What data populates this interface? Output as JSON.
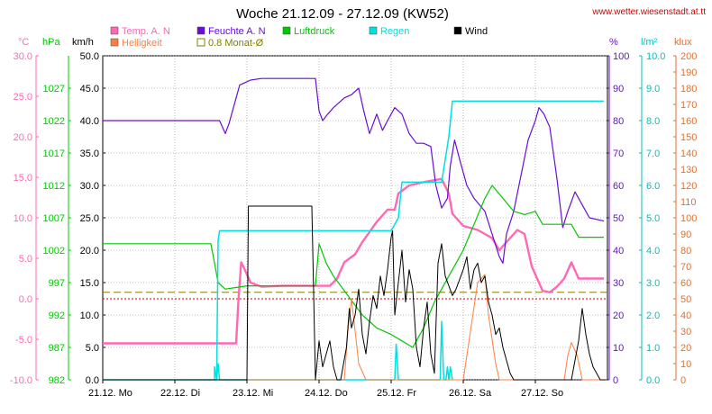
{
  "header": {
    "title": "Woche 21.12.09 - 27.12.09 (KW52)",
    "site": "www.wetter.wiesenstadt.at.tt"
  },
  "colors": {
    "temp": "#ff69b4",
    "helligkeit": "#ff7f3f",
    "feuchte": "#6a0dd8",
    "luftdruck": "#00c800",
    "regen": "#00e0e0",
    "wind": "#000000",
    "grid": "#888888",
    "monat_line": "#808000",
    "zero_line": "#cc0000",
    "site": "#cc0000"
  },
  "legend": [
    {
      "label": "Temp. A. N",
      "color": "#ff69b4",
      "type": "filled"
    },
    {
      "label": "Feuchte A. N",
      "color": "#6a0dd8",
      "type": "filled"
    },
    {
      "label": "Luftdruck",
      "color": "#00c800",
      "type": "filled"
    },
    {
      "label": "Regen",
      "color": "#00e0e0",
      "type": "filled"
    },
    {
      "label": "Wind",
      "color": "#000000",
      "type": "filled"
    },
    {
      "label": "Helligkeit",
      "color": "#ff7f3f",
      "type": "filled"
    },
    {
      "label": "0.8 Monat-Ø",
      "color": "#808000",
      "type": "outline"
    }
  ],
  "chart_data": {
    "type": "line",
    "x_labels": [
      "21.12. Mo",
      "22.12. Di",
      "23.12. Mi",
      "24.12. Do",
      "25.12. Fr",
      "26.12. Sa",
      "27.12. So"
    ],
    "axes": {
      "temp": {
        "unit": "°C",
        "ticks": [
          "30.0",
          "25.0",
          "20.0",
          "15.0",
          "10.0",
          "5.0",
          "0.0",
          "-5.0",
          "-10.0"
        ],
        "range": [
          -10,
          30
        ]
      },
      "pressure": {
        "unit": "hPa",
        "ticks": [
          "1027",
          "1022",
          "1017",
          "1012",
          "1007",
          "1002",
          "997",
          "992",
          "987",
          "982"
        ],
        "range": [
          982,
          1032
        ]
      },
      "wind": {
        "unit": "km/h",
        "ticks": [
          "50.0",
          "45.0",
          "40.0",
          "35.0",
          "30.0",
          "25.0",
          "20.0",
          "15.0",
          "10.0",
          "5.0",
          "0.0"
        ],
        "range": [
          0,
          50
        ]
      },
      "humidity": {
        "unit": "%",
        "ticks": [
          "100",
          "90",
          "80",
          "70",
          "60",
          "50",
          "40",
          "30",
          "20",
          "10",
          "0"
        ],
        "range": [
          0,
          100
        ]
      },
      "rain": {
        "unit": "l/m²",
        "ticks": [
          "10.0",
          "9.0",
          "8.0",
          "7.0",
          "6.0",
          "5.0",
          "4.0",
          "3.0",
          "2.0",
          "1.0",
          "0.0"
        ],
        "range": [
          0,
          10
        ]
      },
      "lux": {
        "unit": "klux",
        "ticks": [
          "200",
          "190",
          "180",
          "170",
          "160",
          "150",
          "140",
          "130",
          "120",
          "110",
          "100",
          "90",
          "80",
          "70",
          "60",
          "50",
          "40",
          "30",
          "20",
          "10",
          "0"
        ],
        "range": [
          0,
          200
        ]
      }
    },
    "monat_avg_temp": 0.8,
    "series": [
      {
        "name": "Temp. A. N",
        "axis": "temp",
        "color": "#ff69b4",
        "width": 2.4,
        "points": [
          [
            0,
            -5.5
          ],
          [
            1.85,
            -5.5
          ],
          [
            1.88,
            -0.5
          ],
          [
            1.92,
            4.5
          ],
          [
            1.96,
            3.8
          ],
          [
            2.05,
            2.0
          ],
          [
            2.2,
            1.5
          ],
          [
            2.5,
            1.6
          ],
          [
            2.8,
            1.6
          ],
          [
            3.0,
            1.6
          ],
          [
            3.15,
            1.6
          ],
          [
            3.25,
            2.5
          ],
          [
            3.35,
            4.5
          ],
          [
            3.5,
            5.5
          ],
          [
            3.6,
            7.0
          ],
          [
            3.8,
            9.5
          ],
          [
            3.95,
            11.0
          ],
          [
            4.05,
            11.0
          ],
          [
            4.1,
            13.0
          ],
          [
            4.25,
            14.0
          ],
          [
            4.5,
            14.5
          ],
          [
            4.7,
            14.8
          ],
          [
            4.8,
            13.0
          ],
          [
            4.85,
            10.5
          ],
          [
            5.0,
            9.0
          ],
          [
            5.2,
            8.5
          ],
          [
            5.4,
            7.5
          ],
          [
            5.5,
            6.0
          ],
          [
            5.6,
            7.0
          ],
          [
            5.75,
            8.5
          ],
          [
            5.85,
            8.0
          ],
          [
            5.95,
            4.0
          ],
          [
            6.1,
            1.0
          ],
          [
            6.2,
            0.8
          ],
          [
            6.3,
            1.5
          ],
          [
            6.4,
            2.5
          ],
          [
            6.5,
            4.5
          ],
          [
            6.6,
            2.5
          ],
          [
            6.75,
            2.5
          ],
          [
            6.95,
            2.5
          ]
        ]
      },
      {
        "name": "Feuchte A. N",
        "axis": "humidity",
        "color": "#6a0dd8",
        "width": 1.2,
        "points": [
          [
            0,
            80
          ],
          [
            1.62,
            80
          ],
          [
            1.7,
            76
          ],
          [
            1.75,
            79
          ],
          [
            1.85,
            87
          ],
          [
            1.9,
            91
          ],
          [
            2.0,
            92
          ],
          [
            2.05,
            92.5
          ],
          [
            2.2,
            93
          ],
          [
            2.5,
            93
          ],
          [
            2.8,
            93
          ],
          [
            2.95,
            93
          ],
          [
            3.0,
            83
          ],
          [
            3.05,
            80
          ],
          [
            3.12,
            82
          ],
          [
            3.2,
            84
          ],
          [
            3.35,
            87
          ],
          [
            3.45,
            88
          ],
          [
            3.55,
            90
          ],
          [
            3.62,
            83
          ],
          [
            3.7,
            76
          ],
          [
            3.8,
            82
          ],
          [
            3.88,
            77
          ],
          [
            3.95,
            80
          ],
          [
            4.05,
            84
          ],
          [
            4.15,
            82
          ],
          [
            4.25,
            76
          ],
          [
            4.35,
            73
          ],
          [
            4.45,
            73
          ],
          [
            4.55,
            72
          ],
          [
            4.62,
            60
          ],
          [
            4.7,
            53
          ],
          [
            4.78,
            56
          ],
          [
            4.82,
            66
          ],
          [
            4.88,
            74
          ],
          [
            4.95,
            68
          ],
          [
            5.05,
            60
          ],
          [
            5.15,
            56
          ],
          [
            5.3,
            52
          ],
          [
            5.4,
            45
          ],
          [
            5.5,
            38
          ],
          [
            5.55,
            36
          ],
          [
            5.6,
            45
          ],
          [
            5.7,
            52
          ],
          [
            5.8,
            63
          ],
          [
            5.9,
            74
          ],
          [
            6.0,
            80
          ],
          [
            6.05,
            84
          ],
          [
            6.12,
            82
          ],
          [
            6.2,
            78
          ],
          [
            6.3,
            62
          ],
          [
            6.38,
            47
          ],
          [
            6.45,
            52
          ],
          [
            6.55,
            58
          ],
          [
            6.65,
            54
          ],
          [
            6.75,
            50
          ],
          [
            6.95,
            49
          ]
        ]
      },
      {
        "name": "Luftdruck",
        "axis": "pressure",
        "color": "#00c800",
        "width": 1.2,
        "points": [
          [
            0,
            1003
          ],
          [
            1.5,
            1003
          ],
          [
            1.55,
            1000
          ],
          [
            1.6,
            997
          ],
          [
            1.7,
            996
          ],
          [
            2.0,
            996.5
          ],
          [
            2.5,
            996.5
          ],
          [
            2.95,
            996.5
          ],
          [
            3.0,
            1003
          ],
          [
            3.1,
            1000
          ],
          [
            3.2,
            998
          ],
          [
            3.4,
            995
          ],
          [
            3.6,
            992
          ],
          [
            3.8,
            990
          ],
          [
            4.0,
            989
          ],
          [
            4.15,
            988
          ],
          [
            4.3,
            987
          ],
          [
            4.45,
            990
          ],
          [
            4.6,
            994
          ],
          [
            4.8,
            998
          ],
          [
            5.0,
            1002
          ],
          [
            5.15,
            1006
          ],
          [
            5.3,
            1010
          ],
          [
            5.4,
            1012
          ],
          [
            5.55,
            1010
          ],
          [
            5.7,
            1008
          ],
          [
            5.85,
            1007.5
          ],
          [
            6.0,
            1008
          ],
          [
            6.1,
            1006
          ],
          [
            6.3,
            1006
          ],
          [
            6.5,
            1006
          ],
          [
            6.6,
            1004
          ],
          [
            6.95,
            1004
          ]
        ]
      },
      {
        "name": "Regen",
        "axis": "rain",
        "color": "#00e0e0",
        "width": 1.5,
        "points": [
          [
            0,
            0
          ],
          [
            1.58,
            0
          ],
          [
            1.6,
            4.3
          ],
          [
            1.62,
            4.6
          ],
          [
            2.5,
            4.6
          ],
          [
            3.0,
            4.6
          ],
          [
            3.2,
            4.6
          ],
          [
            4.0,
            4.6
          ],
          [
            4.1,
            5.0
          ],
          [
            4.15,
            6.1
          ],
          [
            4.65,
            6.1
          ],
          [
            4.7,
            6.1
          ],
          [
            4.8,
            7.5
          ],
          [
            4.85,
            8.6
          ],
          [
            5.0,
            8.6
          ],
          [
            6.95,
            8.6
          ]
        ]
      },
      {
        "name": "Regen-Spitzen",
        "axis": "rain",
        "color": "#00e0e0",
        "width": 1.5,
        "points": [
          [
            1.55,
            0
          ],
          [
            1.55,
            0.4
          ],
          [
            1.58,
            0
          ],
          [
            1.6,
            0.5
          ],
          [
            1.62,
            0
          ],
          [
            4.05,
            0
          ],
          [
            4.07,
            1.1
          ],
          [
            4.1,
            0
          ],
          [
            4.68,
            0
          ],
          [
            4.7,
            1.8
          ],
          [
            4.73,
            0
          ],
          [
            4.76,
            0
          ],
          [
            4.78,
            0.4
          ],
          [
            4.8,
            0
          ],
          [
            4.82,
            0.4
          ],
          [
            4.85,
            0
          ]
        ]
      },
      {
        "name": "Helligkeit",
        "axis": "lux",
        "color": "#ff7f3f",
        "width": 1.0,
        "points": [
          [
            0,
            0
          ],
          [
            3.35,
            0
          ],
          [
            3.4,
            30
          ],
          [
            3.45,
            50
          ],
          [
            3.5,
            30
          ],
          [
            3.55,
            10
          ],
          [
            3.65,
            0
          ],
          [
            5.0,
            0
          ],
          [
            5.1,
            30
          ],
          [
            5.2,
            60
          ],
          [
            5.3,
            65
          ],
          [
            5.35,
            40
          ],
          [
            5.45,
            10
          ],
          [
            5.5,
            0
          ],
          [
            6.4,
            0
          ],
          [
            6.45,
            15
          ],
          [
            6.5,
            23
          ],
          [
            6.58,
            15
          ],
          [
            6.65,
            0
          ],
          [
            6.95,
            0
          ]
        ]
      },
      {
        "name": "Wind",
        "axis": "wind",
        "color": "#000000",
        "width": 1.0,
        "points": [
          [
            0,
            0
          ],
          [
            2.0,
            0
          ],
          [
            2.02,
            26.8
          ],
          [
            2.9,
            26.8
          ],
          [
            2.95,
            0
          ],
          [
            3.0,
            6
          ],
          [
            3.05,
            2
          ],
          [
            3.1,
            4
          ],
          [
            3.15,
            6
          ],
          [
            3.2,
            2
          ],
          [
            3.25,
            0
          ],
          [
            3.3,
            0
          ],
          [
            3.38,
            5
          ],
          [
            3.42,
            11
          ],
          [
            3.45,
            8
          ],
          [
            3.5,
            10
          ],
          [
            3.55,
            14
          ],
          [
            3.6,
            7
          ],
          [
            3.65,
            4
          ],
          [
            3.7,
            9
          ],
          [
            3.75,
            13
          ],
          [
            3.8,
            11
          ],
          [
            3.85,
            16
          ],
          [
            3.9,
            13
          ],
          [
            3.95,
            17
          ],
          [
            4.0,
            22
          ],
          [
            4.02,
            23
          ],
          [
            4.05,
            10
          ],
          [
            4.1,
            15
          ],
          [
            4.15,
            20
          ],
          [
            4.2,
            12
          ],
          [
            4.25,
            17
          ],
          [
            4.3,
            14
          ],
          [
            4.35,
            5
          ],
          [
            4.4,
            2
          ],
          [
            4.45,
            8
          ],
          [
            4.5,
            12
          ],
          [
            4.55,
            4
          ],
          [
            4.6,
            1
          ],
          [
            4.65,
            18
          ],
          [
            4.7,
            21
          ],
          [
            4.75,
            16
          ],
          [
            4.85,
            13
          ],
          [
            4.9,
            14
          ],
          [
            5.0,
            17
          ],
          [
            5.05,
            19
          ],
          [
            5.1,
            14
          ],
          [
            5.15,
            17
          ],
          [
            5.2,
            18
          ],
          [
            5.25,
            15
          ],
          [
            5.3,
            16
          ],
          [
            5.35,
            12
          ],
          [
            5.4,
            10
          ],
          [
            5.45,
            7
          ],
          [
            5.5,
            8
          ],
          [
            5.55,
            5
          ],
          [
            5.6,
            3
          ],
          [
            5.65,
            1
          ],
          [
            5.7,
            0
          ],
          [
            5.8,
            0
          ],
          [
            6.5,
            0
          ],
          [
            6.6,
            6
          ],
          [
            6.65,
            11
          ],
          [
            6.7,
            7
          ],
          [
            6.75,
            4
          ],
          [
            6.8,
            2
          ],
          [
            6.85,
            1
          ],
          [
            6.9,
            0
          ],
          [
            6.95,
            0
          ]
        ]
      }
    ]
  }
}
